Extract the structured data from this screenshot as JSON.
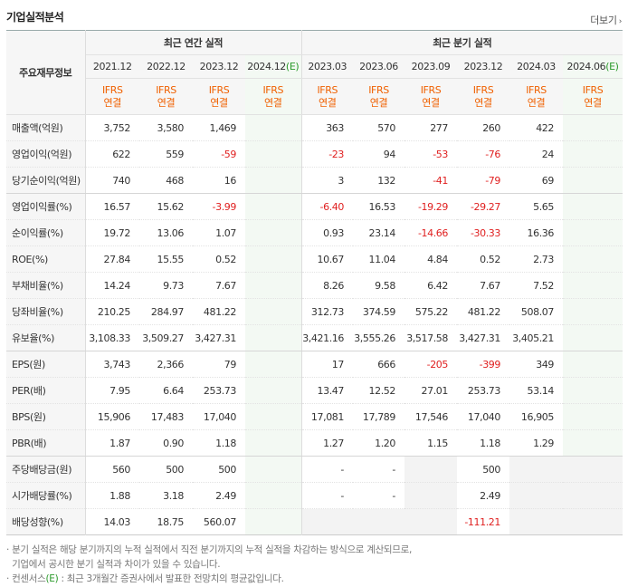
{
  "header": {
    "title": "기업실적분석",
    "more_label": "더보기",
    "more_arrow": "›"
  },
  "table": {
    "row_label_header": "주요재무정보",
    "group_annual": "최근 연간 실적",
    "group_quarter": "최근 분기 실적",
    "periods": [
      "2021.12",
      "2022.12",
      "2023.12",
      "2024.12",
      "2023.03",
      "2023.06",
      "2023.09",
      "2023.12",
      "2024.03",
      "2024.06"
    ],
    "estimate_suffix": "(E)",
    "acct_line1": "IFRS",
    "acct_line2": "연결",
    "rows": [
      {
        "label": "매출액(억원)",
        "values": [
          "3,752",
          "3,580",
          "1,469",
          "",
          "363",
          "570",
          "277",
          "260",
          "422",
          ""
        ]
      },
      {
        "label": "영업이익(억원)",
        "values": [
          "622",
          "559",
          "-59",
          "",
          "-23",
          "94",
          "-53",
          "-76",
          "24",
          ""
        ]
      },
      {
        "label": "당기순이익(억원)",
        "values": [
          "740",
          "468",
          "16",
          "",
          "3",
          "132",
          "-41",
          "-79",
          "69",
          ""
        ]
      },
      {
        "label": "영업이익률(%)",
        "values": [
          "16.57",
          "15.62",
          "-3.99",
          "",
          "-6.40",
          "16.53",
          "-19.29",
          "-29.27",
          "5.65",
          ""
        ]
      },
      {
        "label": "순이익률(%)",
        "values": [
          "19.72",
          "13.06",
          "1.07",
          "",
          "0.93",
          "23.14",
          "-14.66",
          "-30.33",
          "16.36",
          ""
        ]
      },
      {
        "label": "ROE(%)",
        "values": [
          "27.84",
          "15.55",
          "0.52",
          "",
          "10.67",
          "11.04",
          "4.84",
          "0.52",
          "2.73",
          ""
        ]
      },
      {
        "label": "부채비율(%)",
        "values": [
          "14.24",
          "9.73",
          "7.67",
          "",
          "8.26",
          "9.58",
          "6.42",
          "7.67",
          "7.52",
          ""
        ]
      },
      {
        "label": "당좌비율(%)",
        "values": [
          "210.25",
          "284.97",
          "481.22",
          "",
          "312.73",
          "374.59",
          "575.22",
          "481.22",
          "508.07",
          ""
        ]
      },
      {
        "label": "유보율(%)",
        "values": [
          "3,108.33",
          "3,509.27",
          "3,427.31",
          "",
          "3,421.16",
          "3,555.26",
          "3,517.58",
          "3,427.31",
          "3,405.21",
          ""
        ]
      },
      {
        "label": "EPS(원)",
        "values": [
          "3,743",
          "2,366",
          "79",
          "",
          "17",
          "666",
          "-205",
          "-399",
          "349",
          ""
        ]
      },
      {
        "label": "PER(배)",
        "values": [
          "7.95",
          "6.64",
          "253.73",
          "",
          "13.47",
          "12.52",
          "27.01",
          "253.73",
          "53.14",
          ""
        ]
      },
      {
        "label": "BPS(원)",
        "values": [
          "15,906",
          "17,483",
          "17,040",
          "",
          "17,081",
          "17,789",
          "17,546",
          "17,040",
          "16,905",
          ""
        ]
      },
      {
        "label": "PBR(배)",
        "values": [
          "1.87",
          "0.90",
          "1.18",
          "",
          "1.27",
          "1.20",
          "1.15",
          "1.18",
          "1.29",
          ""
        ]
      },
      {
        "label": "주당배당금(원)",
        "values": [
          "560",
          "500",
          "500",
          "",
          "-",
          "-",
          "",
          "500",
          "",
          ""
        ]
      },
      {
        "label": "시가배당률(%)",
        "values": [
          "1.88",
          "3.18",
          "2.49",
          "",
          "-",
          "-",
          "",
          "2.49",
          "",
          ""
        ]
      },
      {
        "label": "배당성향(%)",
        "values": [
          "14.03",
          "18.75",
          "560.07",
          "",
          "",
          "",
          "",
          "-111.21",
          "",
          ""
        ]
      }
    ]
  },
  "notes": {
    "line1": "· 분기 실적은 해당 분기까지의 누적 실적에서 직전 분기까지의 누적 실적을 차감하는 방식으로 계산되므로,",
    "line2": "  기업에서 공시한 분기 실적과 차이가 있을 수 있습니다.",
    "line3_a": "· 컨센서스",
    "line3_e": "(E)",
    "line3_b": " : 최근 3개월간 증권사에서 발표한 전망치의 평균값입니다."
  },
  "colors": {
    "negative": "#e02020",
    "ifrs": "#f06000",
    "estimate": "#2b9a2b"
  }
}
